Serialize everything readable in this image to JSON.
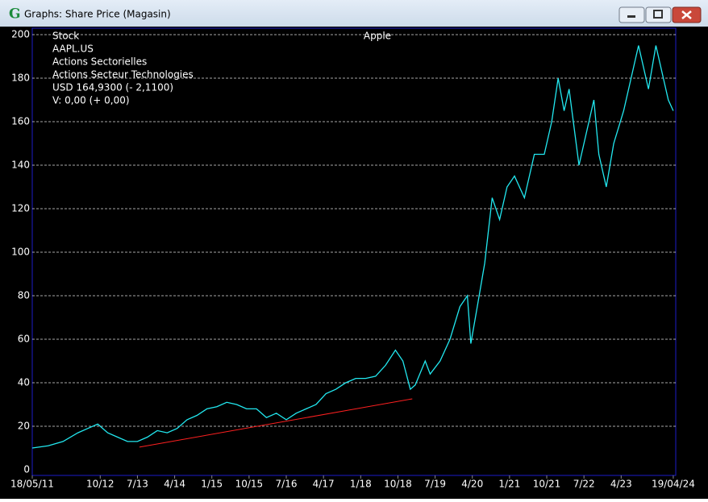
{
  "window": {
    "title": "Graphs: Share Price (Magasin)",
    "icon": "G"
  },
  "chart_data": {
    "type": "line",
    "title": "Apple",
    "info": [
      "Stock",
      "AAPL.US",
      "Actions Sectorielles",
      "Actions Secteur Technologies",
      "USD 164,9300 (- 2,1100)",
      "V: 0,00 (+ 0,00)"
    ],
    "x": [
      2011.38,
      2011.7,
      2012.0,
      2012.3,
      2012.5,
      2012.7,
      2012.9,
      2013.1,
      2013.3,
      2013.5,
      2013.7,
      2013.9,
      2014.1,
      2014.3,
      2014.5,
      2014.7,
      2014.9,
      2015.1,
      2015.3,
      2015.5,
      2015.7,
      2015.9,
      2016.1,
      2016.3,
      2016.5,
      2016.7,
      2016.9,
      2017.1,
      2017.3,
      2017.5,
      2017.7,
      2017.9,
      2018.1,
      2018.3,
      2018.5,
      2018.7,
      2018.85,
      2019.0,
      2019.1,
      2019.3,
      2019.4,
      2019.6,
      2019.8,
      2020.0,
      2020.15,
      2020.22,
      2020.35,
      2020.5,
      2020.65,
      2020.8,
      2020.95,
      2021.1,
      2021.3,
      2021.5,
      2021.7,
      2021.85,
      2021.98,
      2022.1,
      2022.2,
      2022.4,
      2022.6,
      2022.7,
      2022.8,
      2022.95,
      2023.1,
      2023.3,
      2023.5,
      2023.6,
      2023.8,
      2023.95,
      2024.05,
      2024.2,
      2024.3
    ],
    "series": [
      {
        "color": "#22e8f0",
        "values": [
          10,
          11,
          13,
          17,
          19,
          21,
          17,
          15,
          13,
          13,
          15,
          18,
          17,
          19,
          23,
          25,
          28,
          29,
          31,
          30,
          28,
          28,
          24,
          26,
          23,
          26,
          28,
          30,
          35,
          37,
          40,
          42,
          42,
          43,
          48,
          55,
          50,
          37,
          39,
          50,
          44,
          50,
          60,
          75,
          80,
          58,
          75,
          95,
          125,
          115,
          130,
          135,
          125,
          145,
          145,
          160,
          180,
          165,
          175,
          140,
          160,
          170,
          145,
          130,
          150,
          165,
          185,
          195,
          175,
          195,
          185,
          170,
          165
        ]
      }
    ],
    "trend_line": {
      "color": "#ff2020",
      "x": [
        2013.54,
        2019.04
      ],
      "values": [
        10.4,
        32.6
      ]
    },
    "xlim": [
      2011.38,
      2024.35
    ],
    "ylim": [
      0,
      200
    ],
    "xticks": [
      {
        "value": 2011.38,
        "label": "18/05/11"
      },
      {
        "value": 2012.75,
        "label": "10/12"
      },
      {
        "value": 2013.5,
        "label": "7/13"
      },
      {
        "value": 2014.25,
        "label": "4/14"
      },
      {
        "value": 2015.0,
        "label": "1/15"
      },
      {
        "value": 2015.75,
        "label": "10/15"
      },
      {
        "value": 2016.5,
        "label": "7/16"
      },
      {
        "value": 2017.25,
        "label": "4/17"
      },
      {
        "value": 2018.0,
        "label": "1/18"
      },
      {
        "value": 2018.75,
        "label": "10/18"
      },
      {
        "value": 2019.5,
        "label": "7/19"
      },
      {
        "value": 2020.25,
        "label": "4/20"
      },
      {
        "value": 2021.0,
        "label": "1/21"
      },
      {
        "value": 2021.75,
        "label": "10/21"
      },
      {
        "value": 2022.5,
        "label": "7/22"
      },
      {
        "value": 2023.25,
        "label": "4/23"
      },
      {
        "value": 2024.3,
        "label": "19/04/24"
      }
    ],
    "yticks": [
      0,
      20,
      40,
      60,
      80,
      100,
      120,
      140,
      160,
      180,
      200
    ],
    "grid": true
  }
}
